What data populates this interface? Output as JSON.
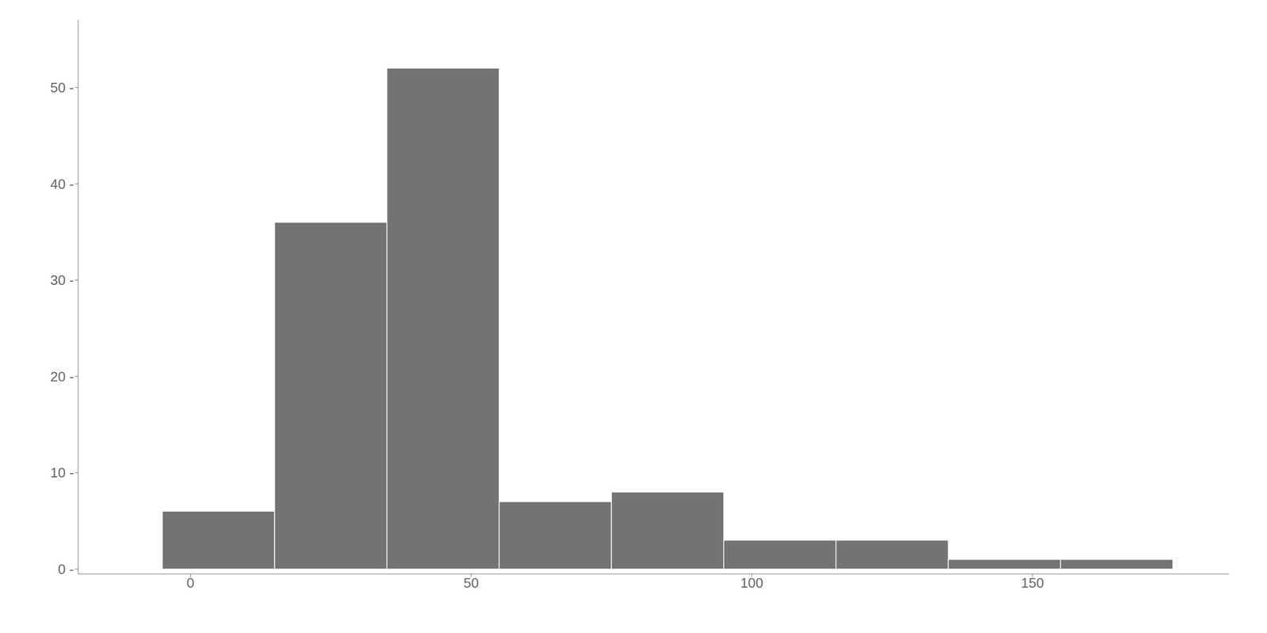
{
  "chart_data": {
    "type": "histogram",
    "bins": [
      -5,
      15,
      35,
      55,
      75,
      95,
      115,
      135,
      155,
      175
    ],
    "values": [
      6,
      36,
      52,
      7,
      8,
      3,
      3,
      1,
      1
    ],
    "color": "#737373",
    "xlim": [
      -20,
      185
    ],
    "ylim": [
      -0.5,
      57
    ],
    "xticks": [
      0,
      50,
      100,
      150
    ],
    "yticks": [
      {
        "value": 0,
        "label": "0 -"
      },
      {
        "value": 10,
        "label": "10 -"
      },
      {
        "value": 20,
        "label": "20 -"
      },
      {
        "value": 30,
        "label": "30 -"
      },
      {
        "value": 40,
        "label": "40 -"
      },
      {
        "value": 50,
        "label": "50 -"
      }
    ],
    "grid": false
  }
}
